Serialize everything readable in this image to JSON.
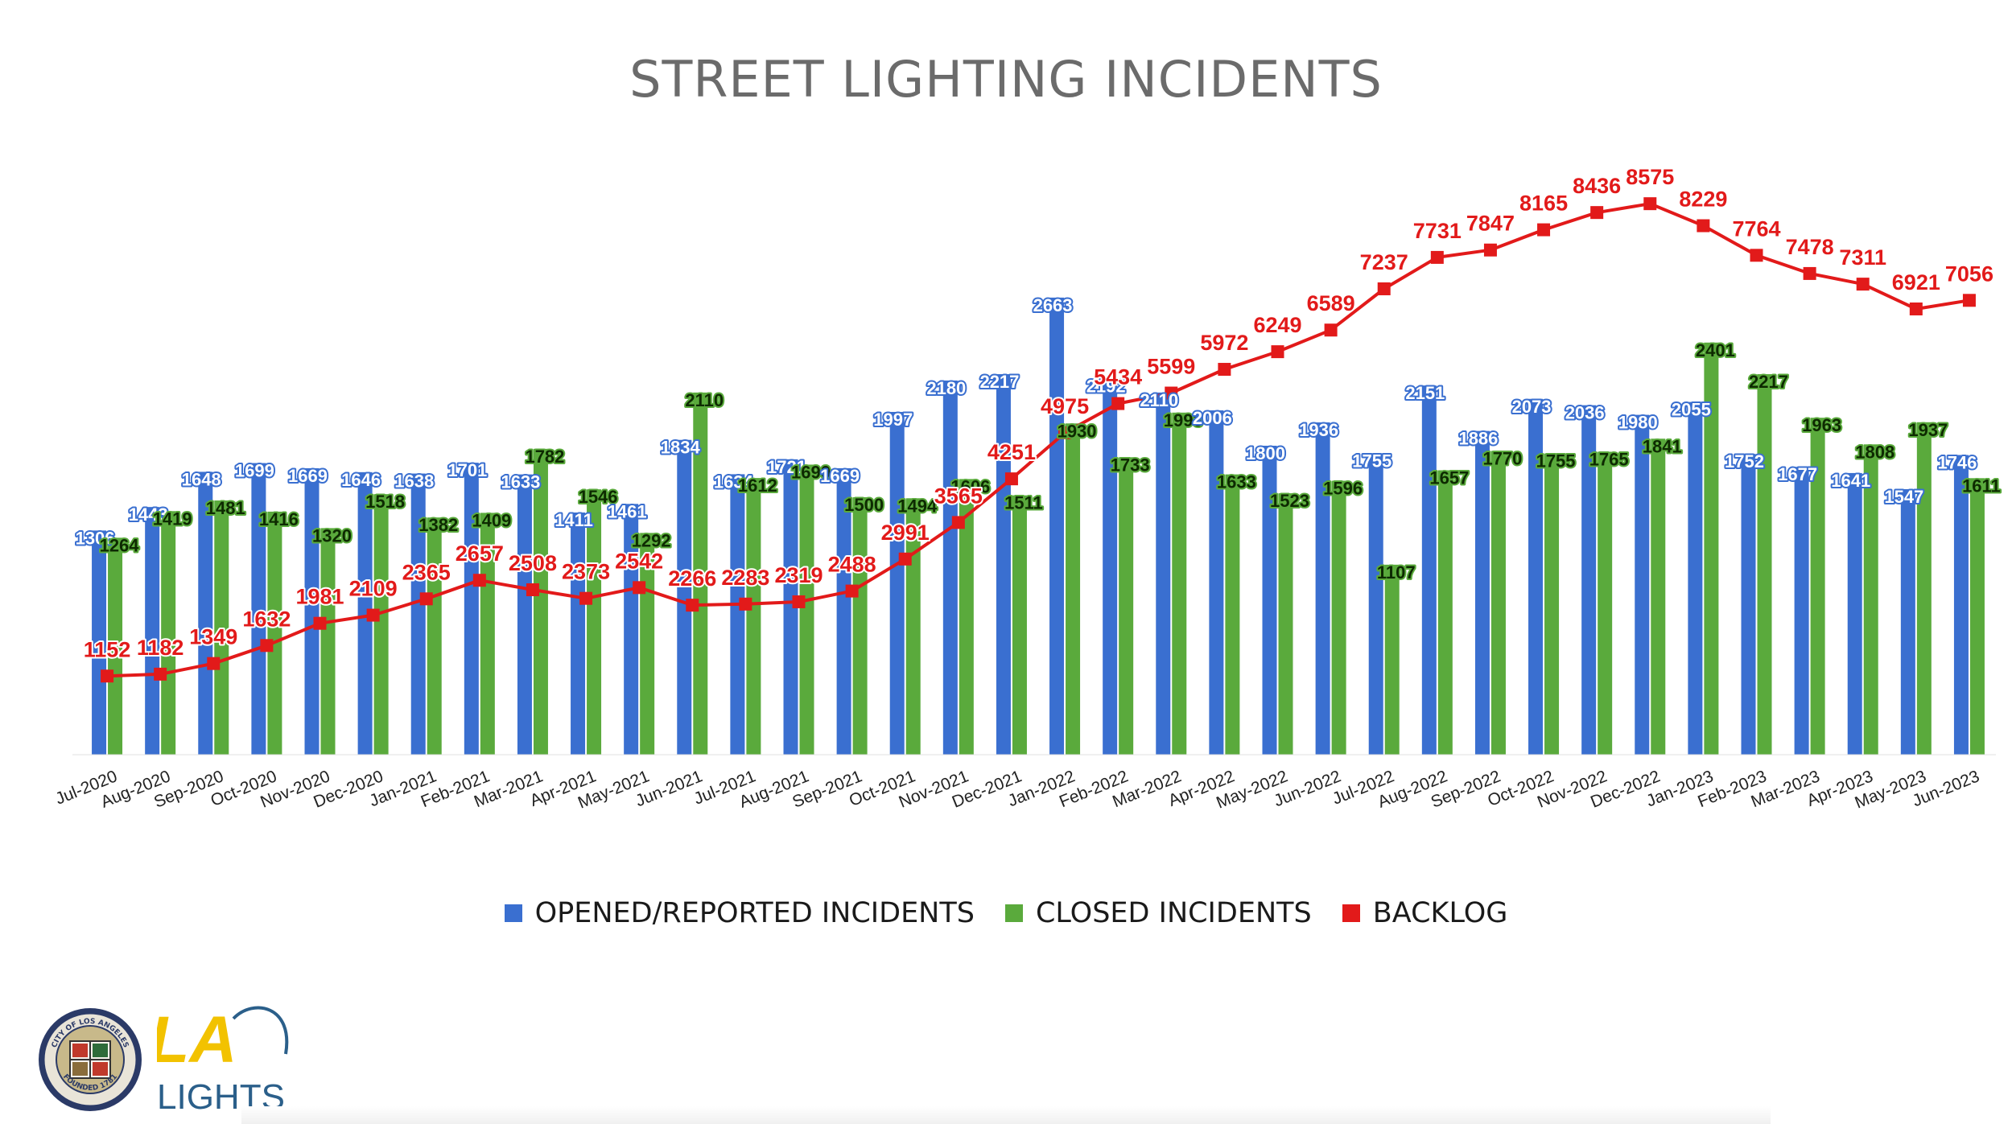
{
  "chart_data": {
    "type": "bar",
    "title": "STREET LIGHTING INCIDENTS",
    "xlabel": "",
    "ylabel": "",
    "categories": [
      "Jul-2020",
      "Aug-2020",
      "Sep-2020",
      "Oct-2020",
      "Nov-2020",
      "Dec-2020",
      "Jan-2021",
      "Feb-2021",
      "Mar-2021",
      "Apr-2021",
      "May-2021",
      "Jun-2021",
      "Jul-2021",
      "Aug-2021",
      "Sep-2021",
      "Oct-2021",
      "Nov-2021",
      "Dec-2021",
      "Jan-2022",
      "Feb-2022",
      "Mar-2022",
      "Apr-2022",
      "May-2022",
      "Jun-2022",
      "Jul-2022",
      "Aug-2022",
      "Sep-2022",
      "Oct-2022",
      "Nov-2022",
      "Dec-2022",
      "Jan-2023",
      "Feb-2023",
      "Mar-2023",
      "Apr-2023",
      "May-2023",
      "Jun-2023"
    ],
    "series": [
      {
        "name": "OPENED/REPORTED INCIDENTS",
        "kind": "bar",
        "color": "#3a6fd0",
        "label_color": "#ffffff",
        "values": [
          1306,
          1443,
          1648,
          1699,
          1669,
          1646,
          1638,
          1701,
          1633,
          1411,
          1461,
          1834,
          1634,
          1721,
          1669,
          1997,
          2180,
          2217,
          2663,
          2192,
          2110,
          2006,
          1800,
          1936,
          1755,
          2151,
          1886,
          2073,
          2036,
          1980,
          2055,
          1752,
          1677,
          1641,
          1547,
          1746
        ]
      },
      {
        "name": "CLOSED INCIDENTS",
        "kind": "bar",
        "color": "#5aaa3c",
        "label_color": "#0d2a00",
        "values": [
          1264,
          1419,
          1481,
          1416,
          1320,
          1518,
          1382,
          1409,
          1782,
          1546,
          1292,
          2110,
          1612,
          1690,
          1500,
          1494,
          1606,
          1511,
          1930,
          1733,
          1993,
          1633,
          1523,
          1596,
          1107,
          1657,
          1770,
          1755,
          1765,
          1841,
          2401,
          2217,
          1963,
          1808,
          1937,
          1611
        ]
      },
      {
        "name": "BACKLOG",
        "kind": "line",
        "color": "#e21a1a",
        "label_color": "#e21a1a",
        "values": [
          1152,
          1182,
          1349,
          1632,
          1981,
          2109,
          2365,
          2657,
          2508,
          2373,
          2542,
          2266,
          2283,
          2319,
          2488,
          2991,
          3565,
          4251,
          4975,
          5434,
          5599,
          5972,
          6249,
          6589,
          7237,
          7731,
          7847,
          8165,
          8436,
          8575,
          8229,
          7764,
          7478,
          7311,
          6921,
          7056
        ]
      }
    ],
    "bar_axis_max": 3000,
    "line_axis_range": [
      -1500,
      9500
    ],
    "grid": false,
    "legend_position": "bottom"
  },
  "legend": {
    "opened": "OPENED/REPORTED INCIDENTS",
    "closed": "CLOSED INCIDENTS",
    "backlog": "BACKLOG"
  },
  "logo": {
    "seal_top_text": "CITY OF LOS ANGELES",
    "seal_bottom_text": "FOUNDED 1781",
    "brand_mark": "LA",
    "brand_word": "LIGHTS"
  }
}
